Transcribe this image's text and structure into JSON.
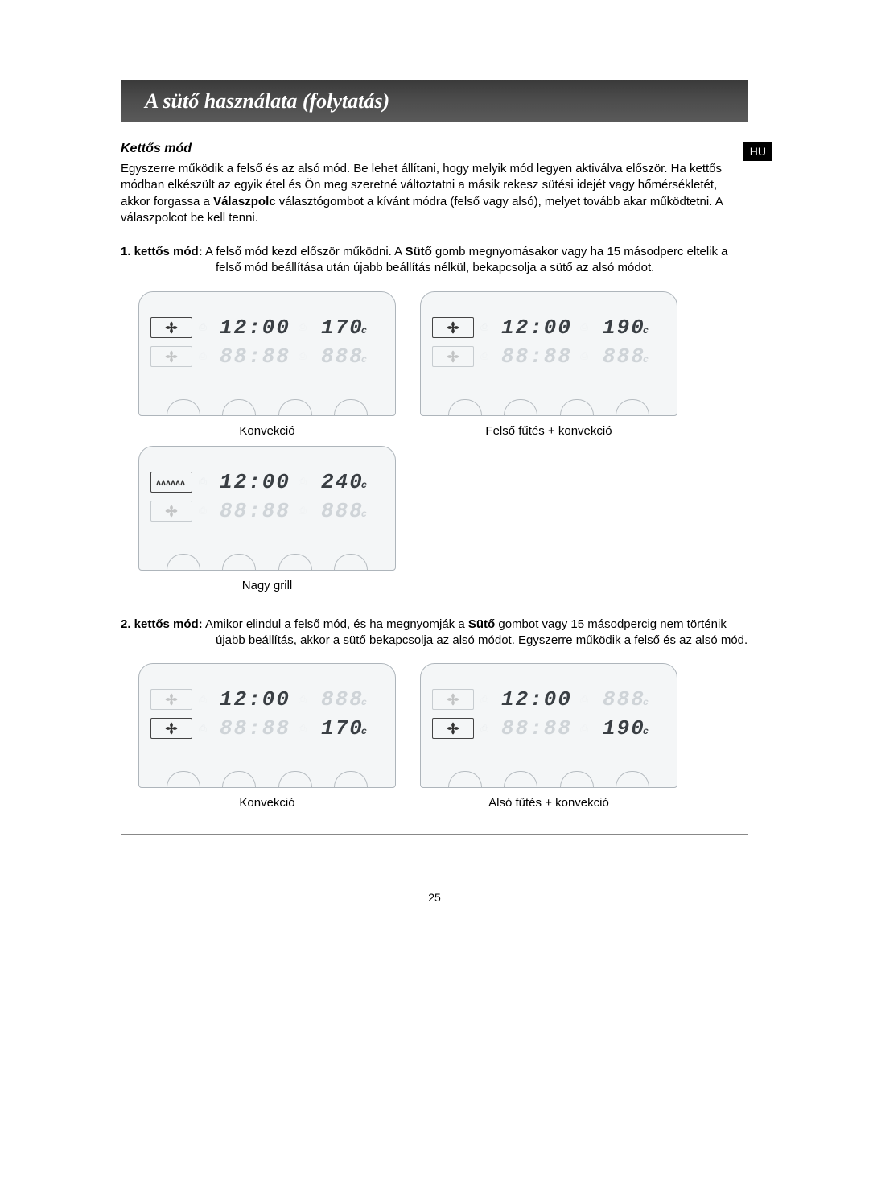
{
  "header": {
    "title": "A sütő használata (folytatás)"
  },
  "lang_tab": "HU",
  "section": {
    "title": "Kettős mód",
    "intro_parts": [
      "Egyszerre működik a felső és az alsó mód. Be lehet állítani, hogy melyik mód legyen aktiválva először. Ha kettős módban elkészült az egyik étel és Ön meg szeretné változtatni a másik rekesz sütési idejét vagy hőmérsékletét, akkor forgassa a ",
      "Válaszpolc",
      " választógombot a kívánt módra (felső vagy alsó), melyet tovább akar működtetni. A válaszpolcot be kell tenni."
    ]
  },
  "mode1": {
    "label": "1. kettős mód:",
    "text_parts": [
      "A felső mód kezd először működni. A ",
      "Sütő",
      " gomb megnyomásakor vagy ha 15 másodperc eltelik a felső mód beállítása után újabb beállítás nélkül, bekapcsolja a sütő az alsó módot."
    ],
    "displays": [
      {
        "caption": "Konvekció",
        "rows": [
          {
            "icon": "fan",
            "active": true,
            "time": "12:00",
            "temp": "170",
            "unit": "c"
          },
          {
            "icon": "fan",
            "active": false,
            "time": "88:88",
            "temp": "888",
            "unit": "c"
          }
        ]
      },
      {
        "caption": "Felső fűtés + konvekció",
        "rows": [
          {
            "icon": "fan",
            "active": true,
            "time": "12:00",
            "temp": "190",
            "unit": "c"
          },
          {
            "icon": "fan",
            "active": false,
            "time": "88:88",
            "temp": "888",
            "unit": "c"
          }
        ]
      },
      {
        "caption": "Nagy grill",
        "rows": [
          {
            "icon": "grill",
            "active": true,
            "time": "12:00",
            "temp": "240",
            "unit": "c"
          },
          {
            "icon": "fan",
            "active": false,
            "time": "88:88",
            "temp": "888",
            "unit": "c"
          }
        ]
      }
    ]
  },
  "mode2": {
    "label": "2. kettős mód:",
    "text_parts": [
      "Amikor elindul a felső mód, és ha megnyomják a ",
      "Sütő",
      " gombot vagy 15 másodpercig nem történik újabb beállítás, akkor a sütő bekapcsolja az alsó módot. Egyszerre működik a felső és az alsó mód."
    ],
    "displays": [
      {
        "caption": "Konvekció",
        "rows": [
          {
            "icon": "fan",
            "active": false,
            "time": "12:00",
            "time_active": true,
            "temp": "888",
            "unit": "c"
          },
          {
            "icon": "fan",
            "active": true,
            "time": "88:88",
            "time_active": false,
            "temp": "170",
            "unit": "c"
          }
        ]
      },
      {
        "caption": "Alsó fűtés + konvekció",
        "rows": [
          {
            "icon": "fan",
            "active": false,
            "time": "12:00",
            "time_active": true,
            "temp": "888",
            "unit": "c"
          },
          {
            "icon": "fan",
            "active": true,
            "time": "88:88",
            "time_active": false,
            "temp": "190",
            "unit": "c"
          }
        ]
      }
    ]
  },
  "page_number": "25",
  "colors": {
    "header_bg": "#4a4a4a",
    "panel_bg": "#f4f6f7",
    "panel_border": "#aeb5bb",
    "seg_active": "#3a3f44",
    "seg_faded": "#cfd4d8"
  }
}
